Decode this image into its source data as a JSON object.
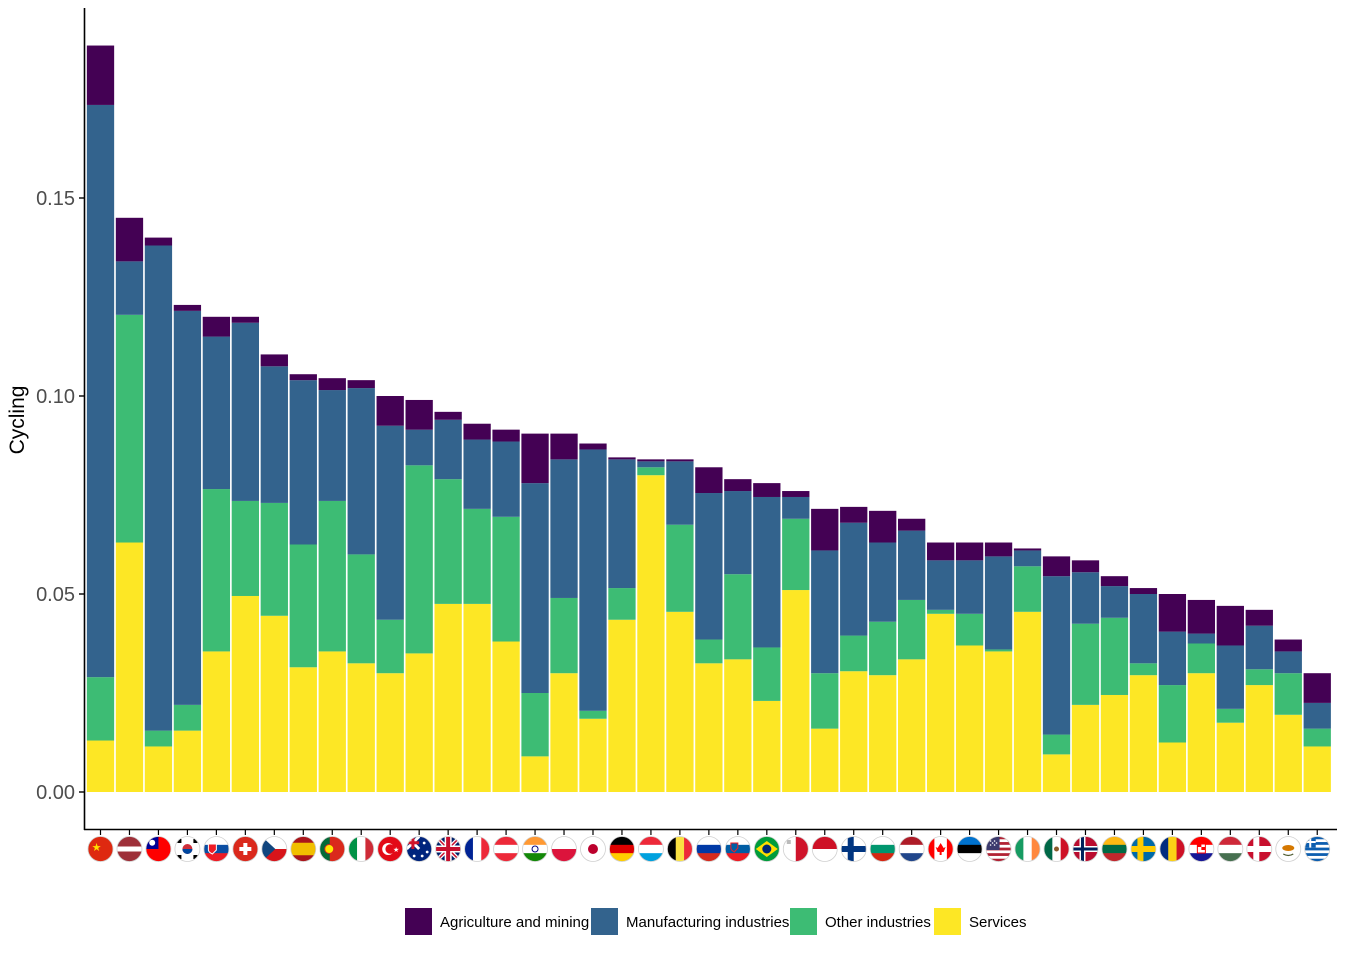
{
  "chart_data": {
    "type": "bar",
    "stacked": true,
    "ylabel": "Cycling",
    "xlabel": "",
    "ylim": [
      -0.0095,
      0.198
    ],
    "yticks": [
      "0.00",
      "0.05",
      "0.10",
      "0.15"
    ],
    "ytick_values": [
      0.0,
      0.05,
      0.1,
      0.15
    ],
    "grid": false,
    "legend_position": "bottom",
    "categories": [
      "China",
      "Latvia",
      "Taiwan",
      "South Korea",
      "Slovakia",
      "Switzerland",
      "Czech Republic",
      "Spain",
      "Portugal",
      "Italy",
      "Turkey",
      "Australia",
      "United Kingdom",
      "France",
      "Austria",
      "India",
      "Poland",
      "Japan",
      "Germany",
      "Luxembourg",
      "Belgium",
      "Russia",
      "Slovenia",
      "Brazil",
      "Malta",
      "Indonesia",
      "Finland",
      "Bulgaria",
      "Netherlands",
      "Canada",
      "Estonia",
      "United States",
      "Ireland",
      "Mexico",
      "Norway",
      "Lithuania",
      "Sweden",
      "Romania",
      "Croatia",
      "Hungary",
      "Denmark",
      "Cyprus",
      "Greece"
    ],
    "series": [
      {
        "name": "Services",
        "color": "#fde725",
        "values": [
          0.013,
          0.063,
          0.0115,
          0.0155,
          0.0355,
          0.0495,
          0.0445,
          0.0315,
          0.0355,
          0.0325,
          0.03,
          0.035,
          0.0475,
          0.0475,
          0.038,
          0.009,
          0.03,
          0.0185,
          0.0435,
          0.08,
          0.0455,
          0.0325,
          0.0335,
          0.023,
          0.051,
          0.016,
          0.0305,
          0.0295,
          0.0335,
          0.045,
          0.037,
          0.0355,
          0.0455,
          0.0095,
          0.022,
          0.0245,
          0.0295,
          0.0125,
          0.03,
          0.0175,
          0.027,
          0.0195,
          0.0115
        ]
      },
      {
        "name": "Other industries",
        "color": "#3dbc74",
        "values": [
          0.016,
          0.0575,
          0.004,
          0.0065,
          0.041,
          0.024,
          0.0285,
          0.031,
          0.038,
          0.0275,
          0.0135,
          0.0475,
          0.0315,
          0.024,
          0.0315,
          0.016,
          0.019,
          0.002,
          0.008,
          0.002,
          0.022,
          0.006,
          0.0215,
          0.0135,
          0.018,
          0.014,
          0.009,
          0.0135,
          0.015,
          0.001,
          0.008,
          0.0005,
          0.0115,
          0.005,
          0.0205,
          0.0195,
          0.003,
          0.0145,
          0.0075,
          0.0035,
          0.004,
          0.0105,
          0.0045
        ]
      },
      {
        "name": "Manufacturing industries",
        "color": "#33638d",
        "values": [
          0.1445,
          0.0135,
          0.1225,
          0.0995,
          0.0385,
          0.045,
          0.0345,
          0.0415,
          0.028,
          0.042,
          0.049,
          0.009,
          0.015,
          0.0175,
          0.019,
          0.053,
          0.035,
          0.066,
          0.0325,
          0.0015,
          0.016,
          0.037,
          0.021,
          0.038,
          0.0055,
          0.031,
          0.0285,
          0.02,
          0.0175,
          0.0125,
          0.0135,
          0.0235,
          0.004,
          0.04,
          0.013,
          0.008,
          0.0175,
          0.0135,
          0.0025,
          0.016,
          0.011,
          0.0055,
          0.0065
        ]
      },
      {
        "name": "Agriculture and mining",
        "color": "#440154",
        "values": [
          0.015,
          0.011,
          0.002,
          0.0015,
          0.005,
          0.0015,
          0.003,
          0.0015,
          0.003,
          0.002,
          0.0075,
          0.0075,
          0.002,
          0.004,
          0.003,
          0.0125,
          0.0065,
          0.0015,
          0.0005,
          0.0005,
          0.0005,
          0.0065,
          0.003,
          0.0035,
          0.0015,
          0.0105,
          0.004,
          0.008,
          0.003,
          0.0045,
          0.0045,
          0.0035,
          0.0005,
          0.005,
          0.003,
          0.0025,
          0.0015,
          0.0095,
          0.0085,
          0.01,
          0.004,
          0.003,
          0.0075
        ]
      }
    ],
    "legend_order": [
      "Agriculture and mining",
      "Manufacturing industries",
      "Other industries",
      "Services"
    ]
  },
  "flags": [
    {
      "name": "China",
      "icon": "china-flag-icon"
    },
    {
      "name": "Latvia",
      "icon": "latvia-flag-icon"
    },
    {
      "name": "Taiwan",
      "icon": "taiwan-flag-icon"
    },
    {
      "name": "South Korea",
      "icon": "south-korea-flag-icon"
    },
    {
      "name": "Slovakia",
      "icon": "slovakia-flag-icon"
    },
    {
      "name": "Switzerland",
      "icon": "switzerland-flag-icon"
    },
    {
      "name": "Czech Republic",
      "icon": "czech-flag-icon"
    },
    {
      "name": "Spain",
      "icon": "spain-flag-icon"
    },
    {
      "name": "Portugal",
      "icon": "portugal-flag-icon"
    },
    {
      "name": "Italy",
      "icon": "italy-flag-icon"
    },
    {
      "name": "Turkey",
      "icon": "turkey-flag-icon"
    },
    {
      "name": "Australia",
      "icon": "australia-flag-icon"
    },
    {
      "name": "United Kingdom",
      "icon": "uk-flag-icon"
    },
    {
      "name": "France",
      "icon": "france-flag-icon"
    },
    {
      "name": "Austria",
      "icon": "austria-flag-icon"
    },
    {
      "name": "India",
      "icon": "india-flag-icon"
    },
    {
      "name": "Poland",
      "icon": "poland-flag-icon"
    },
    {
      "name": "Japan",
      "icon": "japan-flag-icon"
    },
    {
      "name": "Germany",
      "icon": "germany-flag-icon"
    },
    {
      "name": "Luxembourg",
      "icon": "luxembourg-flag-icon"
    },
    {
      "name": "Belgium",
      "icon": "belgium-flag-icon"
    },
    {
      "name": "Russia",
      "icon": "russia-flag-icon"
    },
    {
      "name": "Slovenia",
      "icon": "slovenia-flag-icon"
    },
    {
      "name": "Brazil",
      "icon": "brazil-flag-icon"
    },
    {
      "name": "Malta",
      "icon": "malta-flag-icon"
    },
    {
      "name": "Indonesia",
      "icon": "indonesia-flag-icon"
    },
    {
      "name": "Finland",
      "icon": "finland-flag-icon"
    },
    {
      "name": "Bulgaria",
      "icon": "bulgaria-flag-icon"
    },
    {
      "name": "Netherlands",
      "icon": "netherlands-flag-icon"
    },
    {
      "name": "Canada",
      "icon": "canada-flag-icon"
    },
    {
      "name": "Estonia",
      "icon": "estonia-flag-icon"
    },
    {
      "name": "United States",
      "icon": "usa-flag-icon"
    },
    {
      "name": "Ireland",
      "icon": "ireland-flag-icon"
    },
    {
      "name": "Mexico",
      "icon": "mexico-flag-icon"
    },
    {
      "name": "Norway",
      "icon": "norway-flag-icon"
    },
    {
      "name": "Lithuania",
      "icon": "lithuania-flag-icon"
    },
    {
      "name": "Sweden",
      "icon": "sweden-flag-icon"
    },
    {
      "name": "Romania",
      "icon": "romania-flag-icon"
    },
    {
      "name": "Croatia",
      "icon": "croatia-flag-icon"
    },
    {
      "name": "Hungary",
      "icon": "hungary-flag-icon"
    },
    {
      "name": "Denmark",
      "icon": "denmark-flag-icon"
    },
    {
      "name": "Cyprus",
      "icon": "cyprus-flag-icon"
    },
    {
      "name": "Greece",
      "icon": "greece-flag-icon"
    }
  ]
}
